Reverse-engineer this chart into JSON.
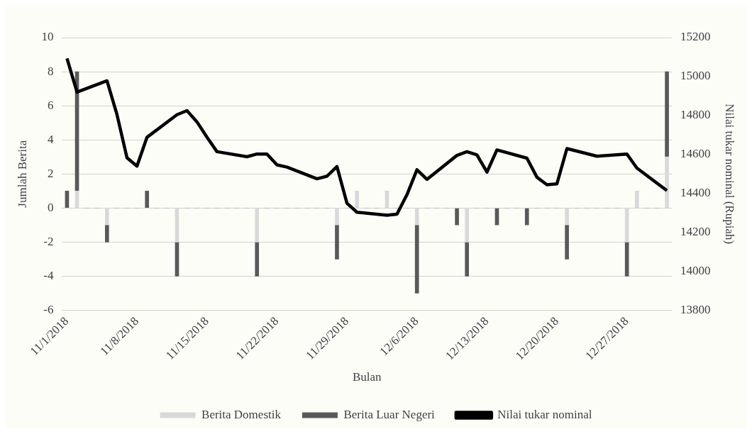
{
  "chart_data": {
    "type": "bar",
    "stacked": true,
    "xlabel": "Bulan",
    "ylabel": "Jumlah Berita",
    "y2label": "Nilai tukar nominal (Rupiah)",
    "categories": [
      "11/1/2018",
      null,
      null,
      null,
      null,
      null,
      null,
      "11/8/2018",
      null,
      null,
      null,
      null,
      null,
      null,
      "11/15/2018",
      null,
      null,
      null,
      null,
      null,
      null,
      "11/22/2018",
      null,
      null,
      null,
      null,
      null,
      null,
      "11/29/2018",
      null,
      null,
      null,
      null,
      null,
      null,
      "12/6/2018",
      null,
      null,
      null,
      null,
      null,
      null,
      "12/13/2018",
      null,
      null,
      null,
      null,
      null,
      null,
      "12/20/2018",
      null,
      null,
      null,
      null,
      null,
      null,
      "12/27/2018",
      null,
      null,
      null,
      null
    ],
    "series": [
      {
        "name": "Berita Domestik",
        "color": "#d9d9d9",
        "values": [
          0,
          1,
          0,
          0,
          -1,
          0,
          0,
          0,
          0,
          0,
          0,
          -2,
          0,
          0,
          0,
          0,
          0,
          0,
          0,
          -2,
          0,
          0,
          0,
          0,
          0,
          0,
          0,
          -1,
          0,
          1,
          0,
          0,
          1,
          0,
          0,
          -1,
          0,
          0,
          0,
          0,
          -2,
          0,
          0,
          0,
          0,
          0,
          0,
          0,
          0,
          0,
          -1,
          0,
          0,
          0,
          0,
          0,
          -2,
          1,
          0,
          0,
          3
        ]
      },
      {
        "name": "Berita Luar Negeri",
        "color": "#595959",
        "values": [
          1,
          7,
          0,
          0,
          -1,
          0,
          0,
          0,
          1,
          0,
          0,
          -2,
          0,
          0,
          0,
          0,
          0,
          0,
          0,
          -2,
          0,
          0,
          0,
          0,
          0,
          0,
          0,
          -2,
          0,
          0,
          0,
          0,
          0,
          0,
          0,
          -4,
          0,
          0,
          0,
          -1,
          -2,
          0,
          0,
          -1,
          0,
          0,
          -1,
          0,
          0,
          0,
          -2,
          0,
          0,
          0,
          0,
          0,
          -2,
          0,
          0,
          0,
          5
        ]
      },
      {
        "name": "Nilai tukar nominal",
        "type": "line",
        "axis": "y2",
        "color": "#000000",
        "values": [
          15093,
          14920,
          null,
          null,
          14978,
          14804,
          14583,
          14540,
          14688,
          null,
          null,
          14804,
          14825,
          14767,
          14688,
          14614,
          null,
          null,
          14588,
          14602,
          14602,
          14546,
          14535,
          null,
          null,
          14475,
          14488,
          14538,
          14349,
          14303,
          null,
          null,
          14288,
          14293,
          14393,
          14521,
          14472,
          null,
          null,
          14595,
          14614,
          14598,
          14509,
          14623,
          null,
          null,
          14581,
          14483,
          14444,
          14449,
          14630,
          null,
          null,
          14591,
          null,
          null,
          14602,
          14530,
          null,
          null,
          14414
        ]
      }
    ],
    "ylim": [
      -6,
      10
    ],
    "yticks": [
      -6,
      -4,
      -2,
      0,
      2,
      4,
      6,
      8,
      10
    ],
    "y2lim": [
      13800,
      15200
    ],
    "y2ticks": [
      13800,
      14000,
      14200,
      14400,
      14600,
      14800,
      15000,
      15200
    ],
    "grid": "y",
    "legend": "bottom",
    "marker": "none",
    "line_style": "solid"
  }
}
